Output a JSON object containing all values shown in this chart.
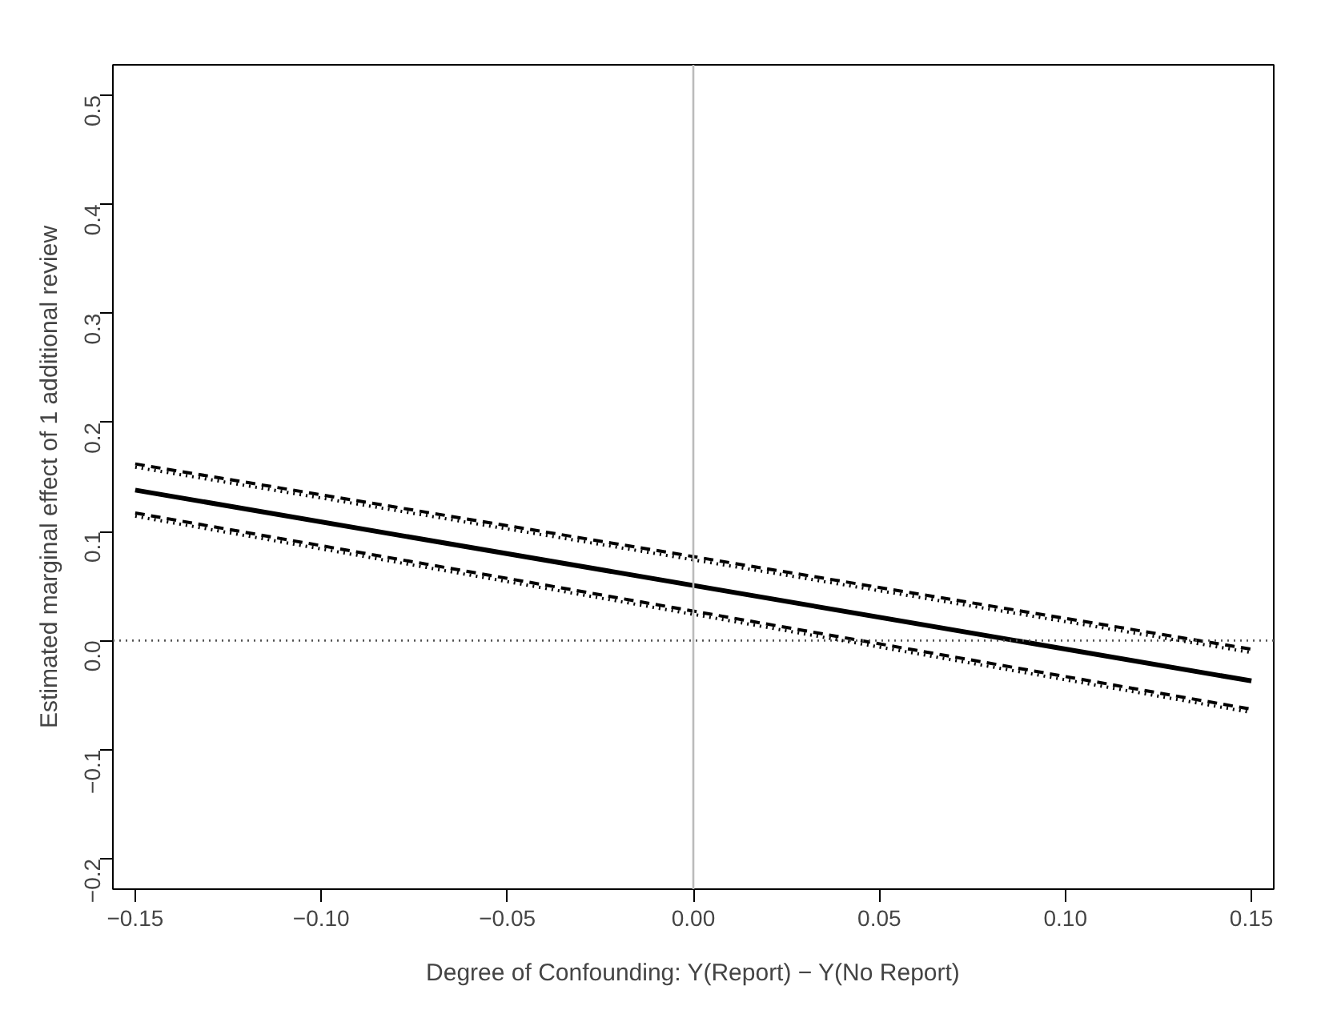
{
  "chart_data": {
    "type": "line",
    "xlabel": "Degree of Confounding: Y(Report) − Y(No Report)",
    "ylabel": "Estimated marginal effect of 1 additional review",
    "x": [
      -0.15,
      0.15
    ],
    "series": [
      {
        "color": "#000000",
        "values": [
          0.138,
          -0.037
        ],
        "line_style": "solid"
      },
      {
        "color": "#000000",
        "values": [
          0.162,
          -0.008
        ],
        "line_style": "dashed"
      },
      {
        "color": "#000000",
        "values": [
          0.159,
          -0.011
        ],
        "line_style": "dotted"
      },
      {
        "color": "#000000",
        "values": [
          0.117,
          -0.063
        ],
        "line_style": "dashed"
      },
      {
        "color": "#000000",
        "values": [
          0.114,
          -0.066
        ],
        "line_style": "dotted"
      }
    ],
    "xlim": [
      -0.156,
      0.156
    ],
    "ylim": [
      -0.228,
      0.528
    ],
    "xticks": [
      {
        "value": -0.15,
        "label": "−0.15"
      },
      {
        "value": -0.1,
        "label": "−0.10"
      },
      {
        "value": -0.05,
        "label": "−0.05"
      },
      {
        "value": 0,
        "label": "0.00"
      },
      {
        "value": 0.05,
        "label": "0.05"
      },
      {
        "value": 0.1,
        "label": "0.10"
      },
      {
        "value": 0.15,
        "label": "0.15"
      }
    ],
    "yticks": [
      {
        "value": -0.2,
        "label": "−0.2"
      },
      {
        "value": -0.1,
        "label": "−0.1"
      },
      {
        "value": 0,
        "label": "0.0"
      },
      0.1,
      0.2,
      0.3,
      0.4,
      0.5
    ],
    "ref_lines": [
      {
        "axis": "y",
        "value": 0,
        "color": "#555555",
        "line_style": "dotted"
      },
      {
        "axis": "x",
        "value": 0,
        "color": "#bbbbbb",
        "line_style": "solid"
      }
    ],
    "grid": false,
    "marker": "none"
  }
}
